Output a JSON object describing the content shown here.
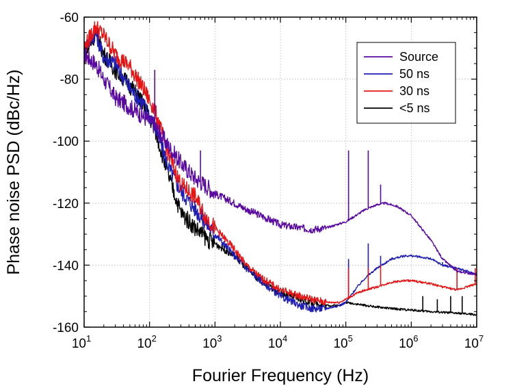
{
  "chart_data": {
    "type": "line",
    "title": "",
    "xlabel": "Fourier Frequency (Hz)",
    "ylabel": "Phase noise PSD (dBc/Hz)",
    "xscale": "log",
    "xlim": [
      10,
      10000000
    ],
    "ylim": [
      -160,
      -60
    ],
    "grid": true,
    "legend_position": "top-right",
    "x_ticks": [
      {
        "base": "10",
        "exp": "1",
        "value": 10
      },
      {
        "base": "10",
        "exp": "2",
        "value": 100
      },
      {
        "base": "10",
        "exp": "3",
        "value": 1000
      },
      {
        "base": "10",
        "exp": "4",
        "value": 10000
      },
      {
        "base": "10",
        "exp": "5",
        "value": 100000
      },
      {
        "base": "10",
        "exp": "6",
        "value": 1000000
      },
      {
        "base": "10",
        "exp": "7",
        "value": 10000000
      }
    ],
    "y_ticks": [
      -60,
      -80,
      -100,
      -120,
      -140,
      -160
    ],
    "series": [
      {
        "name": "Source",
        "color": "#5a0aa0",
        "x": [
          10,
          15,
          20,
          30,
          50,
          80,
          120,
          200,
          300,
          500,
          800,
          1000,
          2000,
          3000,
          5000,
          10000,
          20000,
          30000,
          50000,
          100000,
          200000,
          300000,
          400000,
          600000,
          1000000,
          2000000,
          3000000,
          5000000,
          10000000
        ],
        "y": [
          -72,
          -75,
          -80,
          -86,
          -89,
          -92,
          -95,
          -102,
          -107,
          -112,
          -115,
          -117,
          -120,
          -122,
          -124,
          -127,
          -128,
          -128.5,
          -128,
          -126,
          -122,
          -120.5,
          -120,
          -121,
          -124,
          -132,
          -138,
          -142,
          -143
        ],
        "spikes": [
          {
            "x": 120,
            "y": -77
          },
          {
            "x": 600,
            "y": -103
          },
          {
            "x": 110000,
            "y": -103
          },
          {
            "x": 220000,
            "y": -103
          },
          {
            "x": 340000,
            "y": -114
          }
        ]
      },
      {
        "name": "50 ns",
        "color": "#1e1eb4",
        "x": [
          10,
          15,
          20,
          30,
          50,
          80,
          120,
          200,
          300,
          500,
          700,
          1000,
          2000,
          3000,
          5000,
          10000,
          20000,
          30000,
          50000,
          80000,
          100000,
          150000,
          200000,
          300000,
          500000,
          800000,
          1000000,
          1500000,
          2000000,
          3000000,
          5000000,
          10000000
        ],
        "y": [
          -70,
          -65,
          -73,
          -75,
          -83,
          -88,
          -95,
          -109,
          -116,
          -122,
          -126,
          -130,
          -137,
          -141,
          -145,
          -150,
          -153,
          -154,
          -154,
          -153,
          -152,
          -147,
          -144,
          -141,
          -138,
          -137,
          -137,
          -137.5,
          -138,
          -140,
          -141,
          -143
        ],
        "spikes": [
          {
            "x": 110000,
            "y": -138
          },
          {
            "x": 220000,
            "y": -133
          },
          {
            "x": 340000,
            "y": -137
          },
          {
            "x": 3000000,
            "y": -139
          }
        ]
      },
      {
        "name": "30 ns",
        "color": "#e61414",
        "x": [
          10,
          15,
          20,
          30,
          50,
          80,
          120,
          200,
          300,
          500,
          700,
          1000,
          2000,
          3000,
          5000,
          10000,
          20000,
          30000,
          50000,
          80000,
          100000,
          150000,
          200000,
          300000,
          500000,
          800000,
          1000000,
          2000000,
          3000000,
          5000000,
          7000000,
          10000000
        ],
        "y": [
          -70,
          -63,
          -66,
          -72,
          -76,
          -83,
          -90,
          -105,
          -114,
          -118,
          -124,
          -128,
          -135,
          -140,
          -144,
          -148,
          -150,
          -151,
          -152,
          -152,
          -151,
          -149,
          -148,
          -147,
          -145.5,
          -145,
          -145,
          -146,
          -147,
          -148,
          -147,
          -146
        ],
        "spikes": [
          {
            "x": 110000,
            "y": -141
          },
          {
            "x": 220000,
            "y": -141
          },
          {
            "x": 340000,
            "y": -140
          },
          {
            "x": 5000000,
            "y": -141
          },
          {
            "x": 9500000,
            "y": -141
          }
        ]
      },
      {
        "name": "<5 ns",
        "color": "#000000",
        "x": [
          10,
          15,
          20,
          30,
          50,
          80,
          120,
          200,
          300,
          500,
          800,
          1000,
          2000,
          3000,
          5000,
          10000,
          20000,
          30000,
          50000,
          80000,
          100000,
          200000,
          300000,
          500000,
          1000000,
          2000000,
          5000000,
          10000000
        ],
        "y": [
          -73,
          -65,
          -72,
          -77,
          -82,
          -88,
          -96,
          -112,
          -123,
          -128,
          -132,
          -133,
          -137,
          -141,
          -145,
          -149,
          -151,
          -152,
          -153,
          -153,
          -152,
          -153,
          -153.5,
          -154,
          -154.5,
          -155,
          -155.5,
          -156
        ],
        "spikes": [
          {
            "x": 1500000,
            "y": -150
          },
          {
            "x": 2500000,
            "y": -151
          },
          {
            "x": 4000000,
            "y": -150
          },
          {
            "x": 6000000,
            "y": -150
          }
        ]
      }
    ]
  }
}
